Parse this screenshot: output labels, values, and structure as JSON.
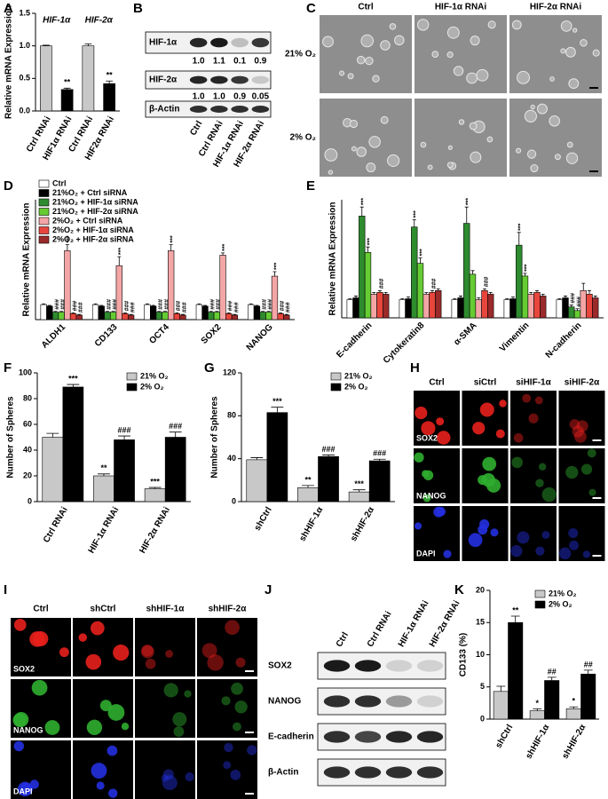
{
  "chart_data": [
    {
      "panel": "A",
      "type": "bar",
      "ylabel": "Relative mRNA Expression",
      "group_labels": [
        "HIF-1α",
        "HIF-2α"
      ],
      "categories": [
        "Ctrl RNAi",
        "HIF1α RNAi",
        "Ctrl RNAi",
        "HIF2α RNAi"
      ],
      "values": [
        1.0,
        0.33,
        1.0,
        0.42
      ],
      "errors": [
        0.01,
        0.02,
        0.03,
        0.04
      ],
      "colors": [
        "#c8c8c8",
        "#000000",
        "#c8c8c8",
        "#000000"
      ],
      "significance": [
        null,
        "**",
        null,
        "**"
      ],
      "ylim": [
        0,
        1.5
      ],
      "yticks": [
        {
          "value": 0,
          "label": "0.0"
        },
        0.5,
        {
          "value": 1,
          "label": "1.0"
        },
        1.5
      ]
    },
    {
      "panel": "D",
      "type": "bar",
      "ylabel": "Relative mRNA Expression",
      "legend": "upper left",
      "categories": [
        "ALDH1",
        "CD133",
        "OCT4",
        "SOX2",
        "NANOG"
      ],
      "ylim": [
        0,
        8
      ],
      "series": [
        {
          "name": "Ctrl",
          "color": "#ffffff",
          "values": [
            1.0,
            1.0,
            1.0,
            1.0,
            1.0
          ],
          "errors": [
            0.05,
            0.05,
            0.05,
            0.05,
            0.05
          ]
        },
        {
          "name": "21%O₂ + Ctrl siRNA",
          "color": "#000000",
          "values": [
            0.9,
            0.9,
            0.9,
            0.9,
            0.9
          ],
          "errors": [
            0.05,
            0.05,
            0.05,
            0.05,
            0.05
          ]
        },
        {
          "name": "21%O₂ + HIF-1α siRNA",
          "color": "#2e8b2e",
          "values": [
            0.5,
            0.5,
            0.5,
            0.5,
            0.5
          ],
          "errors": [
            0.05,
            0.05,
            0.05,
            0.05,
            0.05
          ],
          "significance": [
            "###",
            "###",
            "###",
            "###",
            "###"
          ]
        },
        {
          "name": "21%O₂ + HIF-2α siRNA",
          "color": "#66cc33",
          "values": [
            0.5,
            0.5,
            0.5,
            0.5,
            0.5
          ],
          "errors": [
            0.05,
            0.05,
            0.05,
            0.05,
            0.05
          ],
          "significance": [
            "###",
            "###",
            "###",
            "###",
            "###"
          ]
        },
        {
          "name": "2%O₂ + Ctrl siRNA",
          "color": "#f4a6a6",
          "values": [
            4.6,
            3.6,
            4.6,
            4.3,
            2.9
          ],
          "errors": [
            0.4,
            0.6,
            0.4,
            0.15,
            0.3
          ],
          "significance": [
            "***",
            "***",
            "***",
            "***",
            "***"
          ]
        },
        {
          "name": "2%O₂ + HIF-1α siRNA",
          "color": "#e8463c",
          "values": [
            0.4,
            0.4,
            0.4,
            0.4,
            0.4
          ],
          "errors": [
            0.05,
            0.05,
            0.05,
            0.05,
            0.05
          ],
          "significance": [
            "###",
            "###",
            "###",
            "###",
            "###"
          ]
        },
        {
          "name": "2%O₂ + HIF-2α siRNA",
          "color": "#9b2a2a",
          "values": [
            0.3,
            0.3,
            0.3,
            0.3,
            0.3
          ],
          "errors": [
            0.05,
            0.05,
            0.05,
            0.05,
            0.05
          ],
          "significance": [
            "###",
            "###",
            "###",
            "###",
            "###"
          ]
        }
      ]
    },
    {
      "panel": "E",
      "type": "bar",
      "ylabel": "Relative mRNA Expression",
      "categories": [
        "E-cadherin",
        "Cytokeratin8",
        "α-SMA",
        "Vimentin",
        "N-cadherin"
      ],
      "ylim": [
        0,
        6.5
      ],
      "series": [
        {
          "color": "#ffffff",
          "values": [
            1.0,
            1.0,
            1.0,
            1.0,
            1.0
          ],
          "errors": [
            0.05,
            0.05,
            0.05,
            0.05,
            0.05
          ]
        },
        {
          "color": "#000000",
          "values": [
            1.1,
            1.05,
            1.1,
            1.05,
            1.1
          ],
          "errors": [
            0.1,
            0.1,
            0.1,
            0.1,
            0.1
          ]
        },
        {
          "color": "#2e8b2e",
          "values": [
            5.6,
            5.0,
            5.2,
            4.0,
            0.6
          ],
          "errors": [
            0.5,
            0.4,
            0.9,
            0.7,
            0.1
          ],
          "significance": [
            "***",
            "***",
            "***",
            "***",
            "###"
          ]
        },
        {
          "color": "#66cc33",
          "values": [
            3.6,
            3.0,
            2.4,
            2.3,
            0.4
          ],
          "errors": [
            0.3,
            0.3,
            0.2,
            0.15,
            0.1
          ],
          "significance": [
            "***",
            "***",
            null,
            "***",
            "###"
          ]
        },
        {
          "color": "#f4a6a6",
          "values": [
            1.3,
            1.3,
            1.0,
            1.3,
            1.5
          ],
          "errors": [
            0.1,
            0.1,
            0.1,
            0.1,
            0.4
          ]
        },
        {
          "color": "#e8463c",
          "values": [
            1.4,
            1.4,
            1.5,
            1.4,
            1.3
          ],
          "errors": [
            0.1,
            0.1,
            0.1,
            0.1,
            0.2
          ],
          "significance": [
            "###",
            "###",
            "###",
            null,
            null
          ]
        },
        {
          "color": "#9b2a2a",
          "values": [
            1.3,
            1.5,
            1.3,
            1.2,
            1.1
          ],
          "errors": [
            0.1,
            0.1,
            0.1,
            0.1,
            0.1
          ]
        }
      ]
    },
    {
      "panel": "F",
      "type": "bar",
      "ylabel": "Number of Spheres",
      "legend": "upper right",
      "categories": [
        "Ctrl RNAi",
        "HIF-1α RNAi",
        "HIF-2α RNAi"
      ],
      "ylim": [
        0,
        100
      ],
      "yticks": [
        0,
        20,
        40,
        60,
        80,
        100
      ],
      "series": [
        {
          "name": "21% O₂",
          "color": "#c8c8c8",
          "values": [
            50,
            20,
            10
          ],
          "errors": [
            3,
            1.5,
            1
          ],
          "significance": [
            null,
            "**",
            "***"
          ]
        },
        {
          "name": "2% O₂",
          "color": "#000000",
          "values": [
            89,
            48,
            50
          ],
          "errors": [
            2,
            3,
            4
          ],
          "significance": [
            "***",
            "###",
            "###"
          ]
        }
      ]
    },
    {
      "panel": "G",
      "type": "bar",
      "ylabel": "Number of Spheres",
      "legend": "upper right",
      "categories": [
        "shCtrl",
        "shHIF-1α",
        "shHIF-2α"
      ],
      "ylim": [
        0,
        120
      ],
      "yticks": [
        0,
        40,
        80,
        120
      ],
      "series": [
        {
          "name": "21% O₂",
          "color": "#c8c8c8",
          "values": [
            39,
            13,
            9
          ],
          "errors": [
            2,
            2,
            2
          ],
          "significance": [
            null,
            "**",
            "***"
          ]
        },
        {
          "name": "2% O₂",
          "color": "#000000",
          "values": [
            83,
            42,
            38
          ],
          "errors": [
            5,
            1.5,
            1.5
          ],
          "significance": [
            "***",
            "###",
            "###"
          ]
        }
      ]
    },
    {
      "panel": "K",
      "type": "bar",
      "ylabel": "CD133 (%)",
      "legend": "upper right",
      "categories": [
        "shCtrl",
        "shHIF-1α",
        "shHIF-2α"
      ],
      "ylim": [
        0,
        20
      ],
      "yticks": [
        0,
        5,
        10,
        15,
        20
      ],
      "series": [
        {
          "name": "21% O₂",
          "color": "#c8c8c8",
          "values": [
            4.3,
            1.3,
            1.6
          ],
          "errors": [
            0.8,
            0.3,
            0.3
          ],
          "significance": [
            null,
            "*",
            "*"
          ]
        },
        {
          "name": "2% O₂",
          "color": "#000000",
          "values": [
            15,
            6,
            7
          ],
          "errors": [
            1.0,
            0.5,
            0.6
          ],
          "significance": [
            "**",
            "##",
            "##"
          ]
        }
      ]
    }
  ],
  "blots": [
    {
      "panel": "B",
      "lanes": [
        "Ctrl",
        "Ctrl RNAi",
        "HIF-1α RNAi",
        "HIF-2α RNAi"
      ],
      "rows": [
        {
          "label": "HIF-1α",
          "quant": [
            "1.0",
            "1.1",
            "0.1",
            "0.9"
          ]
        },
        {
          "label": "HIF-2α",
          "quant": [
            "1.0",
            "1.0",
            "0.9",
            "0.05"
          ]
        },
        {
          "label": "β-Actin"
        }
      ]
    },
    {
      "panel": "J",
      "lanes": [
        "Ctrl",
        "Ctrl RNAi",
        "HIF-1α RNAi",
        "HIF-2α RNAi"
      ],
      "rows": [
        {
          "label": "SOX2"
        },
        {
          "label": "NANOG"
        },
        {
          "label": "E-cadherin"
        },
        {
          "label": "β-Actin"
        }
      ]
    }
  ],
  "micrographs": [
    {
      "panel": "C",
      "columns": [
        "Ctrl",
        "HIF-1α RNAi",
        "HIF-2α RNAi"
      ],
      "rows": [
        {
          "label": "21% O₂",
          "color": "#e6e6e6"
        },
        {
          "label": "2% O₂",
          "color": "#e6e6e6"
        }
      ]
    },
    {
      "panel": "H",
      "columns": [
        "Ctrl",
        "siCtrl",
        "siHIF-1α",
        "siHIF-2α"
      ],
      "rows": [
        {
          "label": "SOX2",
          "color": "#e8201c"
        },
        {
          "label": "NANOG",
          "color": "#2fae2f"
        },
        {
          "label": "DAPI",
          "color": "#2430e0"
        }
      ]
    },
    {
      "panel": "I",
      "columns": [
        "Ctrl",
        "shCtrl",
        "shHIF-1α",
        "shHIF-2α"
      ],
      "rows": [
        {
          "label": "SOX2",
          "color": "#e8201c"
        },
        {
          "label": "NANOG",
          "color": "#2fae2f"
        },
        {
          "label": "DAPI",
          "color": "#2430e0"
        }
      ]
    }
  ]
}
